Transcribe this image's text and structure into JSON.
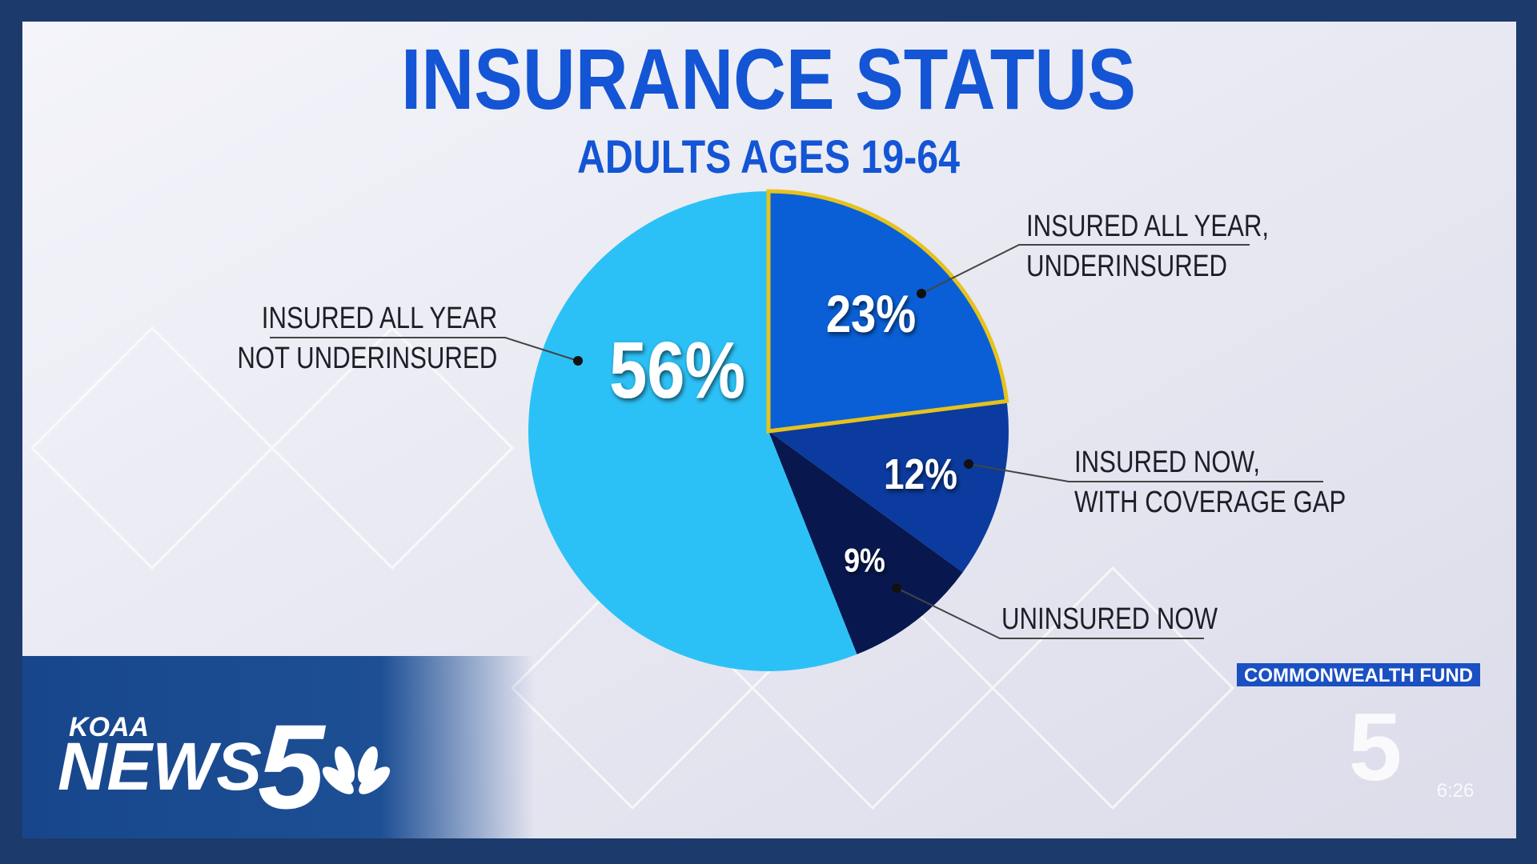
{
  "chart_data": {
    "type": "pie",
    "title": "INSURANCE STATUS",
    "subtitle": "ADULTS AGES 19-64",
    "categories": [
      "INSURED ALL YEAR,\nUNDERINSURED",
      "INSURED NOW,\nWITH COVERAGE GAP",
      "UNINSURED NOW",
      "INSURED ALL YEAR\nNOT UNDERINSURED"
    ],
    "values": [
      23,
      12,
      9,
      56
    ],
    "value_labels": [
      "23%",
      "12%",
      "9%",
      "56%"
    ],
    "colors": [
      "#0a5fd6",
      "#0b3b9e",
      "#08184f",
      "#2cc1f6"
    ],
    "outlines": [
      "#e6c21c",
      null,
      null,
      null
    ],
    "source": "COMMONWEALTH FUND"
  },
  "broadcast": {
    "station": "KOAA",
    "brand": "NEWS",
    "channel": "5",
    "corner_channel": "5",
    "time": "6:26"
  }
}
